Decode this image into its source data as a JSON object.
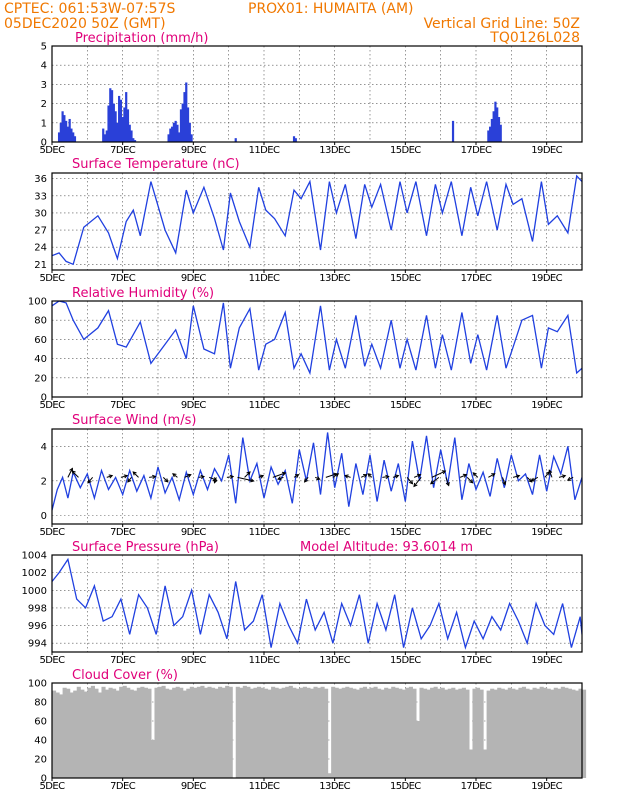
{
  "header": {
    "line1_left": "CPTEC:    061:53W-07:57S",
    "line1_station": "PROX01: HUMAITA (AM)",
    "line2_left": "05DEC2020 50Z (GMT)",
    "line2_right": "Vertical Grid Line: 50Z",
    "line3_right": "TQ0126L028"
  },
  "colors": {
    "header": "#f07800",
    "title": "#e0007a",
    "series": "#2040e0",
    "bars": "#2a40d8",
    "cloud": "#b4b4b4"
  },
  "chart_data": [
    {
      "id": "precip",
      "type": "bar",
      "title": "Precipitation (mm/h)",
      "ylim": [
        0,
        5
      ],
      "yticks": [
        "0",
        "1",
        "2",
        "3",
        "4",
        "5"
      ],
      "x_dates": [
        "5DEC",
        "7DEC",
        "9DEC",
        "11DEC",
        "13DEC",
        "15DEC",
        "17DEC",
        "19DEC"
      ],
      "grid": true,
      "x": [
        5.2,
        5.25,
        5.3,
        5.35,
        5.4,
        5.45,
        5.5,
        5.55,
        5.6,
        5.65,
        6.45,
        6.5,
        6.55,
        6.6,
        6.65,
        6.7,
        6.75,
        6.8,
        6.85,
        6.9,
        6.95,
        7.0,
        7.05,
        7.1,
        7.15,
        7.2,
        7.25,
        7.3,
        7.35,
        8.3,
        8.35,
        8.4,
        8.45,
        8.5,
        8.55,
        8.6,
        8.65,
        8.7,
        8.75,
        8.8,
        8.85,
        8.9,
        8.95,
        10.2,
        11.85,
        11.9,
        16.35,
        17.35,
        17.4,
        17.45,
        17.5,
        17.55,
        17.6,
        17.65,
        17.7
      ],
      "values": [
        0.5,
        1.0,
        1.6,
        1.4,
        1.1,
        0.8,
        1.2,
        0.7,
        0.5,
        0.3,
        0.7,
        0.4,
        0.6,
        1.9,
        2.8,
        2.7,
        2.0,
        1.6,
        1.0,
        2.4,
        2.2,
        1.3,
        1.8,
        2.6,
        1.7,
        0.9,
        0.6,
        0.2,
        0.1,
        0.4,
        0.7,
        0.8,
        1.0,
        1.1,
        0.9,
        0.5,
        1.7,
        2.0,
        2.6,
        3.1,
        1.8,
        1.0,
        0.4,
        0.2,
        0.3,
        0.2,
        1.1,
        0.6,
        0.8,
        1.2,
        1.6,
        2.1,
        1.8,
        1.3,
        0.9
      ]
    },
    {
      "id": "temp",
      "type": "line",
      "title": "Surface Temperature (nC)",
      "ylim": [
        20,
        37
      ],
      "yticks": [
        "21",
        "24",
        "27",
        "30",
        "33",
        "36"
      ],
      "x_dates": [
        "5DEC",
        "7DEC",
        "9DEC",
        "11DEC",
        "13DEC",
        "15DEC",
        "17DEC",
        "19DEC"
      ],
      "grid": true,
      "x": [
        5.0,
        5.2,
        5.4,
        5.6,
        5.9,
        6.3,
        6.6,
        6.85,
        7.1,
        7.3,
        7.5,
        7.8,
        8.2,
        8.5,
        8.8,
        9.0,
        9.3,
        9.6,
        9.85,
        10.05,
        10.3,
        10.6,
        10.85,
        11.05,
        11.3,
        11.6,
        11.85,
        12.05,
        12.3,
        12.6,
        12.85,
        13.05,
        13.3,
        13.6,
        13.85,
        14.05,
        14.3,
        14.6,
        14.85,
        15.05,
        15.3,
        15.6,
        15.85,
        16.05,
        16.3,
        16.6,
        16.85,
        17.05,
        17.3,
        17.6,
        17.85,
        18.05,
        18.3,
        18.6,
        18.85,
        19.05,
        19.3,
        19.6,
        19.85,
        20.0
      ],
      "values": [
        22.5,
        23.0,
        21.5,
        21.0,
        27.5,
        29.5,
        26.5,
        22.0,
        28.5,
        30.5,
        26.0,
        35.5,
        27.0,
        23.0,
        34.0,
        30.0,
        34.5,
        29.0,
        23.5,
        33.5,
        28.5,
        24.0,
        34.5,
        30.5,
        29.0,
        26.0,
        34.0,
        32.5,
        35.5,
        23.5,
        35.5,
        30.0,
        35.0,
        25.5,
        35.0,
        31.0,
        35.0,
        27.0,
        35.5,
        30.0,
        35.5,
        26.0,
        35.0,
        30.0,
        35.5,
        26.0,
        34.5,
        29.5,
        35.5,
        27.0,
        35.0,
        31.5,
        32.5,
        25.0,
        35.5,
        28.0,
        29.5,
        26.5,
        36.5,
        35.5
      ]
    },
    {
      "id": "rh",
      "type": "line",
      "title": "Relative Humidity (%)",
      "ylim": [
        0,
        100
      ],
      "yticks": [
        "0",
        "20",
        "40",
        "60",
        "80",
        "100"
      ],
      "x_dates": [
        "5DEC",
        "7DEC",
        "9DEC",
        "11DEC",
        "13DEC",
        "15DEC",
        "17DEC",
        "19DEC"
      ],
      "grid": true,
      "x": [
        5.0,
        5.2,
        5.4,
        5.6,
        5.9,
        6.3,
        6.6,
        6.85,
        7.1,
        7.3,
        7.5,
        7.8,
        8.2,
        8.5,
        8.8,
        9.0,
        9.3,
        9.6,
        9.85,
        10.05,
        10.3,
        10.6,
        10.85,
        11.05,
        11.3,
        11.6,
        11.85,
        12.05,
        12.3,
        12.6,
        12.85,
        13.05,
        13.3,
        13.6,
        13.85,
        14.05,
        14.3,
        14.6,
        14.85,
        15.05,
        15.3,
        15.6,
        15.85,
        16.05,
        16.3,
        16.6,
        16.85,
        17.05,
        17.3,
        17.6,
        17.85,
        18.05,
        18.3,
        18.6,
        18.85,
        19.05,
        19.3,
        19.6,
        19.85,
        20.0
      ],
      "values": [
        95,
        100,
        98,
        80,
        60,
        72,
        90,
        55,
        52,
        65,
        78,
        35,
        55,
        70,
        40,
        95,
        50,
        45,
        98,
        30,
        72,
        92,
        28,
        55,
        60,
        88,
        30,
        45,
        25,
        95,
        28,
        60,
        30,
        85,
        32,
        55,
        30,
        80,
        30,
        60,
        28,
        85,
        30,
        65,
        28,
        88,
        35,
        65,
        28,
        85,
        30,
        52,
        80,
        85,
        30,
        72,
        68,
        85,
        25,
        30
      ]
    },
    {
      "id": "wind",
      "type": "line",
      "title": "Surface Wind (m/s)",
      "ylim": [
        -0.5,
        5
      ],
      "yticks": [
        "0",
        "2",
        "4"
      ],
      "x_dates": [
        "5DEC",
        "7DEC",
        "9DEC",
        "11DEC",
        "13DEC",
        "15DEC",
        "17DEC",
        "19DEC"
      ],
      "grid": true,
      "x": [
        5.0,
        5.15,
        5.3,
        5.45,
        5.6,
        5.8,
        6.0,
        6.2,
        6.4,
        6.6,
        6.8,
        7.0,
        7.2,
        7.4,
        7.6,
        7.8,
        8.0,
        8.2,
        8.4,
        8.6,
        8.8,
        9.0,
        9.2,
        9.4,
        9.6,
        9.8,
        10.0,
        10.2,
        10.4,
        10.6,
        10.8,
        11.0,
        11.2,
        11.4,
        11.6,
        11.8,
        12.0,
        12.2,
        12.4,
        12.6,
        12.8,
        13.0,
        13.2,
        13.4,
        13.6,
        13.8,
        14.0,
        14.2,
        14.4,
        14.6,
        14.8,
        15.0,
        15.2,
        15.4,
        15.6,
        15.8,
        16.0,
        16.2,
        16.4,
        16.6,
        16.8,
        17.0,
        17.2,
        17.4,
        17.6,
        17.8,
        18.0,
        18.2,
        18.4,
        18.6,
        18.8,
        19.0,
        19.2,
        19.4,
        19.6,
        19.8,
        20.0
      ],
      "values": [
        0.3,
        1.5,
        2.2,
        1.0,
        2.5,
        1.6,
        2.4,
        1.0,
        2.6,
        1.5,
        2.2,
        1.2,
        2.6,
        1.4,
        2.3,
        1.0,
        2.8,
        1.3,
        2.2,
        0.9,
        2.5,
        1.2,
        2.6,
        1.5,
        2.7,
        2.0,
        3.5,
        0.7,
        4.5,
        2.0,
        3.0,
        1.0,
        2.8,
        1.8,
        2.6,
        0.7,
        3.8,
        2.0,
        4.2,
        1.2,
        4.8,
        1.6,
        3.6,
        0.5,
        3.0,
        1.2,
        3.5,
        0.8,
        3.2,
        1.4,
        3.0,
        0.8,
        4.3,
        2.0,
        4.6,
        1.6,
        3.8,
        1.8,
        4.5,
        0.9,
        3.0,
        1.5,
        2.5,
        1.1,
        3.3,
        1.6,
        3.5,
        2.0,
        2.4,
        1.2,
        3.5,
        1.4,
        3.4,
        2.4,
        4.0,
        0.9,
        2.2
      ],
      "arrows": [
        [
          5.45,
          0.5,
          1.0
        ],
        [
          5.75,
          -0.7,
          0.7
        ],
        [
          6.15,
          -0.5,
          -0.6
        ],
        [
          6.55,
          0.6,
          0.2
        ],
        [
          6.95,
          0.7,
          0.2
        ],
        [
          7.25,
          -0.4,
          -0.5
        ],
        [
          7.45,
          -0.6,
          0.6
        ],
        [
          7.75,
          0.7,
          0.1
        ],
        [
          8.15,
          0.5,
          -0.5
        ],
        [
          8.55,
          -0.5,
          0.4
        ],
        [
          8.75,
          0.7,
          0.3
        ],
        [
          9.15,
          0.6,
          0.1
        ],
        [
          9.45,
          0.8,
          -0.3
        ],
        [
          9.65,
          -0.2,
          -0.6
        ],
        [
          9.95,
          0.7,
          0.1
        ],
        [
          10.25,
          1.8,
          -0.4
        ],
        [
          10.45,
          0.6,
          0.6
        ],
        [
          10.85,
          0.5,
          0.2
        ],
        [
          11.25,
          1.4,
          0.5
        ],
        [
          11.55,
          -0.6,
          -0.2
        ],
        [
          11.85,
          0.5,
          0.3
        ],
        [
          12.25,
          -0.4,
          -0.5
        ],
        [
          12.45,
          0.5,
          -0.2
        ],
        [
          12.75,
          1.2,
          0.4
        ],
        [
          12.95,
          0.6,
          0.4
        ],
        [
          13.45,
          -0.6,
          0.2
        ],
        [
          13.75,
          0.6,
          0.3
        ],
        [
          14.05,
          -0.4,
          0.4
        ],
        [
          14.35,
          0.7,
          0.1
        ],
        [
          14.65,
          0.6,
          0.2
        ],
        [
          15.05,
          0.6,
          -0.7
        ],
        [
          15.25,
          0.7,
          0.3
        ],
        [
          15.45,
          -0.8,
          -1.0
        ],
        [
          15.75,
          1.5,
          0.7
        ],
        [
          15.95,
          -0.9,
          -0.7
        ],
        [
          16.15,
          0.3,
          -0.9
        ],
        [
          16.55,
          0.7,
          0.3
        ],
        [
          16.75,
          0.6,
          -0.6
        ],
        [
          17.05,
          -0.5,
          0.5
        ],
        [
          17.35,
          0.7,
          0.4
        ],
        [
          17.75,
          0.3,
          -0.8
        ],
        [
          18.05,
          0.7,
          0.2
        ],
        [
          18.45,
          0.5,
          -0.5
        ],
        [
          18.75,
          -0.7,
          -0.4
        ],
        [
          18.95,
          0.5,
          0.6
        ],
        [
          19.15,
          -0.3,
          0.8
        ],
        [
          19.35,
          0.7,
          0.2
        ],
        [
          19.75,
          -0.6,
          -0.3
        ]
      ]
    },
    {
      "id": "pres",
      "type": "line",
      "title": "Surface Pressure (hPa)",
      "title_right": "Model Altitude: 93.6014 m",
      "ylim": [
        993,
        1004
      ],
      "yticks": [
        "994",
        "996",
        "998",
        "1000",
        "1002",
        "1004"
      ],
      "x_dates": [
        "5DEC",
        "7DEC",
        "9DEC",
        "11DEC",
        "13DEC",
        "15DEC",
        "17DEC",
        "19DEC"
      ],
      "grid": true,
      "x": [
        5.0,
        5.2,
        5.45,
        5.7,
        5.95,
        6.2,
        6.45,
        6.7,
        6.95,
        7.2,
        7.45,
        7.7,
        7.95,
        8.2,
        8.45,
        8.7,
        8.95,
        9.2,
        9.45,
        9.7,
        9.95,
        10.2,
        10.45,
        10.7,
        10.95,
        11.2,
        11.45,
        11.7,
        11.95,
        12.2,
        12.45,
        12.7,
        12.95,
        13.2,
        13.45,
        13.7,
        13.95,
        14.2,
        14.45,
        14.7,
        14.95,
        15.2,
        15.45,
        15.7,
        15.95,
        16.2,
        16.45,
        16.7,
        16.95,
        17.2,
        17.45,
        17.7,
        17.95,
        18.2,
        18.45,
        18.7,
        18.95,
        19.2,
        19.45,
        19.7,
        19.95,
        20.0
      ],
      "values": [
        1001.0,
        1002.0,
        1003.5,
        999.0,
        998.0,
        1000.5,
        996.5,
        997.0,
        999.0,
        995.0,
        999.5,
        998.0,
        995.0,
        1000.5,
        996.0,
        997.0,
        1000.0,
        995.0,
        999.5,
        997.5,
        994.5,
        1001.0,
        995.5,
        996.5,
        999.5,
        993.5,
        998.5,
        996.0,
        994.0,
        999.0,
        995.5,
        997.5,
        994.0,
        998.5,
        996.0,
        999.5,
        994.0,
        998.5,
        995.5,
        999.5,
        993.5,
        998.0,
        994.5,
        996.0,
        998.5,
        994.5,
        997.5,
        993.5,
        996.5,
        994.5,
        997.0,
        995.5,
        998.5,
        996.5,
        994.0,
        998.5,
        996.0,
        995.0,
        998.5,
        993.5,
        997.0,
        995.0
      ]
    },
    {
      "id": "cloud",
      "type": "area",
      "title": "Cloud Cover (%)",
      "ylim": [
        0,
        100
      ],
      "yticks": [
        "0",
        "20",
        "40",
        "60",
        "80",
        "100"
      ],
      "x_dates": [
        "5DEC",
        "7DEC",
        "9DEC",
        "11DEC",
        "13DEC",
        "15DEC",
        "17DEC",
        "19DEC"
      ],
      "grid": true,
      "x": [
        5.0,
        5.1,
        5.2,
        5.3,
        5.4,
        5.5,
        5.6,
        5.7,
        5.8,
        5.9,
        6.0,
        6.1,
        6.2,
        6.3,
        6.4,
        6.5,
        6.6,
        6.7,
        6.8,
        6.9,
        7.0,
        7.1,
        7.2,
        7.3,
        7.4,
        7.5,
        7.6,
        7.7,
        7.8,
        7.9,
        8.0,
        8.1,
        8.2,
        8.3,
        8.4,
        8.5,
        8.6,
        8.7,
        8.8,
        8.9,
        9.0,
        9.1,
        9.2,
        9.3,
        9.4,
        9.5,
        9.6,
        9.7,
        9.8,
        9.9,
        10.0,
        10.1,
        10.2,
        10.3,
        10.4,
        10.5,
        10.6,
        10.7,
        10.8,
        10.9,
        11.0,
        11.1,
        11.2,
        11.3,
        11.4,
        11.5,
        11.6,
        11.7,
        11.8,
        11.9,
        12.0,
        12.1,
        12.2,
        12.3,
        12.4,
        12.5,
        12.6,
        12.7,
        12.8,
        12.9,
        13.0,
        13.1,
        13.2,
        13.3,
        13.4,
        13.5,
        13.6,
        13.7,
        13.8,
        13.9,
        14.0,
        14.1,
        14.2,
        14.3,
        14.4,
        14.5,
        14.6,
        14.7,
        14.8,
        14.9,
        15.0,
        15.1,
        15.2,
        15.3,
        15.4,
        15.5,
        15.6,
        15.7,
        15.8,
        15.9,
        16.0,
        16.1,
        16.2,
        16.3,
        16.4,
        16.5,
        16.6,
        16.7,
        16.8,
        16.9,
        17.0,
        17.1,
        17.2,
        17.3,
        17.4,
        17.5,
        17.6,
        17.7,
        17.8,
        17.9,
        18.0,
        18.1,
        18.2,
        18.3,
        18.4,
        18.5,
        18.6,
        18.7,
        18.8,
        18.9,
        19.0,
        19.1,
        19.2,
        19.3,
        19.4,
        19.5,
        19.6,
        19.7,
        19.8,
        19.9,
        20.0
      ],
      "values": [
        92,
        90,
        88,
        95,
        94,
        90,
        92,
        96,
        93,
        91,
        95,
        97,
        94,
        90,
        96,
        93,
        95,
        94,
        92,
        96,
        97,
        95,
        93,
        92,
        95,
        96,
        95,
        94,
        40,
        95,
        96,
        97,
        94,
        93,
        95,
        96,
        95,
        92,
        94,
        96,
        95,
        96,
        97,
        95,
        96,
        95,
        94,
        96,
        95,
        97,
        96,
        0,
        96,
        95,
        97,
        96,
        94,
        95,
        96,
        95,
        94,
        93,
        96,
        95,
        94,
        95,
        96,
        97,
        95,
        94,
        95,
        96,
        95,
        94,
        96,
        95,
        96,
        94,
        5,
        96,
        95,
        94,
        95,
        96,
        95,
        94,
        93,
        95,
        96,
        94,
        95,
        96,
        94,
        93,
        95,
        94,
        96,
        95,
        94,
        93,
        95,
        96,
        94,
        60,
        95,
        94,
        93,
        95,
        96,
        94,
        95,
        93,
        94,
        95,
        93,
        94,
        95,
        93,
        30,
        94,
        95,
        93,
        30,
        92,
        94,
        93,
        95,
        94,
        93,
        95,
        94,
        93,
        95,
        96,
        94,
        93,
        95,
        94,
        96,
        95,
        94,
        93,
        95,
        94,
        96,
        95,
        94,
        93,
        92,
        94,
        93
      ]
    }
  ]
}
